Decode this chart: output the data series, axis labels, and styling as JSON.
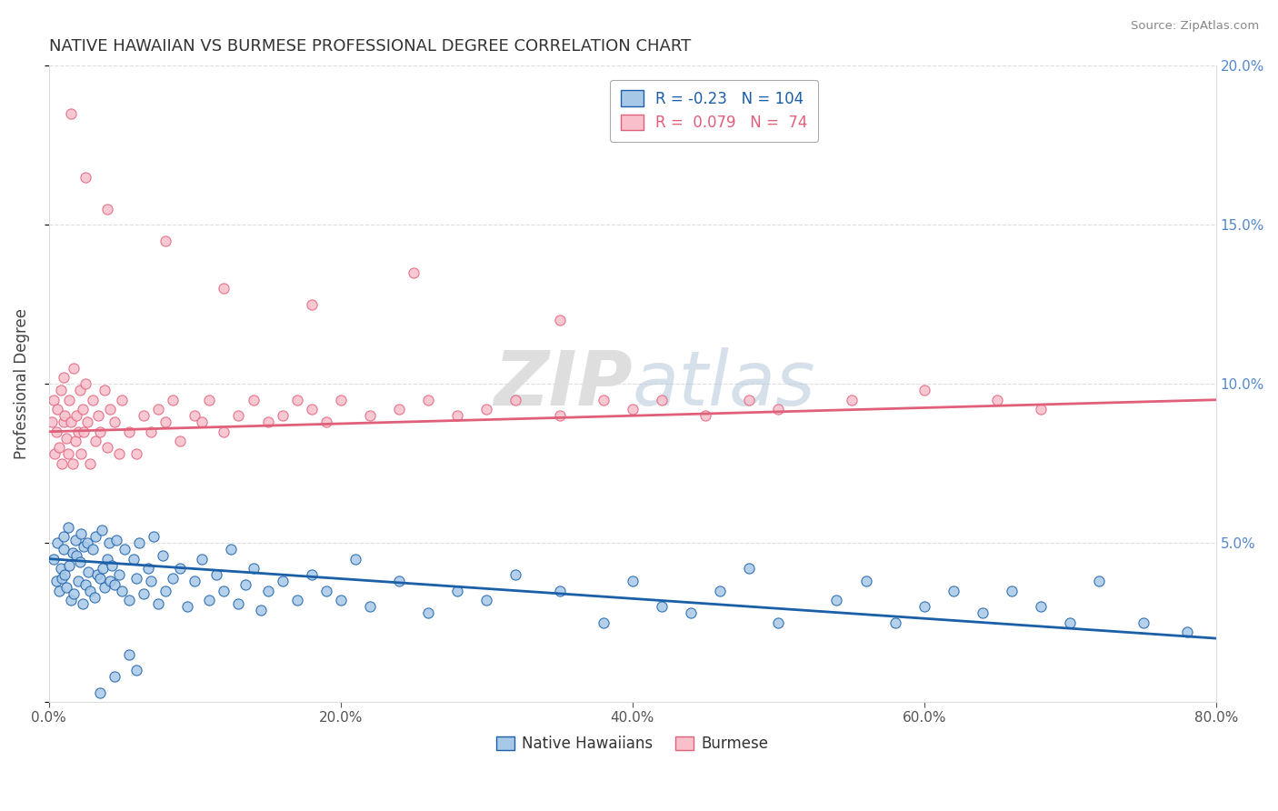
{
  "title": "NATIVE HAWAIIAN VS BURMESE PROFESSIONAL DEGREE CORRELATION CHART",
  "source": "Source: ZipAtlas.com",
  "ylabel": "Professional Degree",
  "xmin": 0.0,
  "xmax": 80.0,
  "ymin": 0.0,
  "ymax": 20.0,
  "ytick_vals": [
    0,
    5,
    10,
    15,
    20
  ],
  "ytick_labels": [
    "",
    "5.0%",
    "10.0%",
    "15.0%",
    "20.0%"
  ],
  "xtick_vals": [
    0,
    20,
    40,
    60,
    80
  ],
  "xtick_labels": [
    "0.0%",
    "20.0%",
    "40.0%",
    "60.0%",
    "80.0%"
  ],
  "blue_R": -0.23,
  "blue_N": 104,
  "pink_R": 0.079,
  "pink_N": 74,
  "blue_scatter_color": "#A8C8E8",
  "blue_line_color": "#1A5FA8",
  "pink_scatter_color": "#F9C0CC",
  "pink_line_color": "#E0607A",
  "watermark_color": "#DEDEDE",
  "grid_color": "#DDDDDD",
  "title_color": "#333333",
  "source_color": "#888888",
  "right_tick_color": "#5588CC",
  "nh_line_start_y": 4.5,
  "nh_line_end_y": 2.0,
  "bu_line_start_y": 8.5,
  "bu_line_end_y": 9.5,
  "nh_x": [
    0.3,
    0.5,
    0.6,
    0.7,
    0.8,
    0.9,
    1.0,
    1.0,
    1.1,
    1.2,
    1.3,
    1.4,
    1.5,
    1.6,
    1.7,
    1.8,
    1.9,
    2.0,
    2.1,
    2.2,
    2.3,
    2.4,
    2.5,
    2.6,
    2.7,
    2.8,
    3.0,
    3.1,
    3.2,
    3.3,
    3.5,
    3.6,
    3.7,
    3.8,
    4.0,
    4.1,
    4.2,
    4.3,
    4.5,
    4.6,
    4.8,
    5.0,
    5.2,
    5.5,
    5.8,
    6.0,
    6.2,
    6.5,
    6.8,
    7.0,
    7.2,
    7.5,
    7.8,
    8.0,
    8.5,
    9.0,
    9.5,
    10.0,
    10.5,
    11.0,
    11.5,
    12.0,
    12.5,
    13.0,
    13.5,
    14.0,
    14.5,
    15.0,
    16.0,
    17.0,
    18.0,
    19.0,
    20.0,
    21.0,
    22.0,
    24.0,
    26.0,
    28.0,
    30.0,
    32.0,
    35.0,
    38.0,
    40.0,
    42.0,
    44.0,
    46.0,
    48.0,
    50.0,
    54.0,
    56.0,
    58.0,
    60.0,
    62.0,
    64.0,
    66.0,
    68.0,
    70.0,
    72.0,
    75.0,
    78.0,
    3.5,
    4.5,
    5.5,
    6.0
  ],
  "nh_y": [
    4.5,
    3.8,
    5.0,
    3.5,
    4.2,
    3.9,
    4.8,
    5.2,
    4.0,
    3.6,
    5.5,
    4.3,
    3.2,
    4.7,
    3.4,
    5.1,
    4.6,
    3.8,
    4.4,
    5.3,
    3.1,
    4.9,
    3.7,
    5.0,
    4.1,
    3.5,
    4.8,
    3.3,
    5.2,
    4.0,
    3.9,
    5.4,
    4.2,
    3.6,
    4.5,
    5.0,
    3.8,
    4.3,
    3.7,
    5.1,
    4.0,
    3.5,
    4.8,
    3.2,
    4.5,
    3.9,
    5.0,
    3.4,
    4.2,
    3.8,
    5.2,
    3.1,
    4.6,
    3.5,
    3.9,
    4.2,
    3.0,
    3.8,
    4.5,
    3.2,
    4.0,
    3.5,
    4.8,
    3.1,
    3.7,
    4.2,
    2.9,
    3.5,
    3.8,
    3.2,
    4.0,
    3.5,
    3.2,
    4.5,
    3.0,
    3.8,
    2.8,
    3.5,
    3.2,
    4.0,
    3.5,
    2.5,
    3.8,
    3.0,
    2.8,
    3.5,
    4.2,
    2.5,
    3.2,
    3.8,
    2.5,
    3.0,
    3.5,
    2.8,
    3.5,
    3.0,
    2.5,
    3.8,
    2.5,
    2.2,
    0.3,
    0.8,
    1.5,
    1.0
  ],
  "bu_x": [
    0.2,
    0.3,
    0.4,
    0.5,
    0.6,
    0.7,
    0.8,
    0.9,
    1.0,
    1.0,
    1.1,
    1.2,
    1.3,
    1.4,
    1.5,
    1.6,
    1.7,
    1.8,
    1.9,
    2.0,
    2.1,
    2.2,
    2.3,
    2.4,
    2.5,
    2.6,
    2.8,
    3.0,
    3.2,
    3.4,
    3.5,
    3.8,
    4.0,
    4.2,
    4.5,
    4.8,
    5.0,
    5.5,
    6.0,
    6.5,
    7.0,
    7.5,
    8.0,
    8.5,
    9.0,
    10.0,
    10.5,
    11.0,
    12.0,
    13.0,
    14.0,
    15.0,
    16.0,
    17.0,
    18.0,
    19.0,
    20.0,
    22.0,
    24.0,
    26.0,
    28.0,
    30.0,
    32.0,
    35.0,
    38.0,
    40.0,
    42.0,
    45.0,
    48.0,
    50.0,
    55.0,
    60.0,
    65.0,
    68.0
  ],
  "bu_y": [
    8.8,
    9.5,
    7.8,
    8.5,
    9.2,
    8.0,
    9.8,
    7.5,
    8.8,
    10.2,
    9.0,
    8.3,
    7.8,
    9.5,
    8.8,
    7.5,
    10.5,
    8.2,
    9.0,
    8.5,
    9.8,
    7.8,
    9.2,
    8.5,
    10.0,
    8.8,
    7.5,
    9.5,
    8.2,
    9.0,
    8.5,
    9.8,
    8.0,
    9.2,
    8.8,
    7.8,
    9.5,
    8.5,
    7.8,
    9.0,
    8.5,
    9.2,
    8.8,
    9.5,
    8.2,
    9.0,
    8.8,
    9.5,
    8.5,
    9.0,
    9.5,
    8.8,
    9.0,
    9.5,
    9.2,
    8.8,
    9.5,
    9.0,
    9.2,
    9.5,
    9.0,
    9.2,
    9.5,
    9.0,
    9.5,
    9.2,
    9.5,
    9.0,
    9.5,
    9.2,
    9.5,
    9.8,
    9.5,
    9.2
  ],
  "bu_outlier_x": [
    1.5,
    2.5,
    4.0,
    8.0,
    12.0,
    18.0,
    25.0,
    35.0
  ],
  "bu_outlier_y": [
    18.5,
    16.5,
    15.5,
    14.5,
    13.0,
    12.5,
    13.5,
    12.0
  ]
}
